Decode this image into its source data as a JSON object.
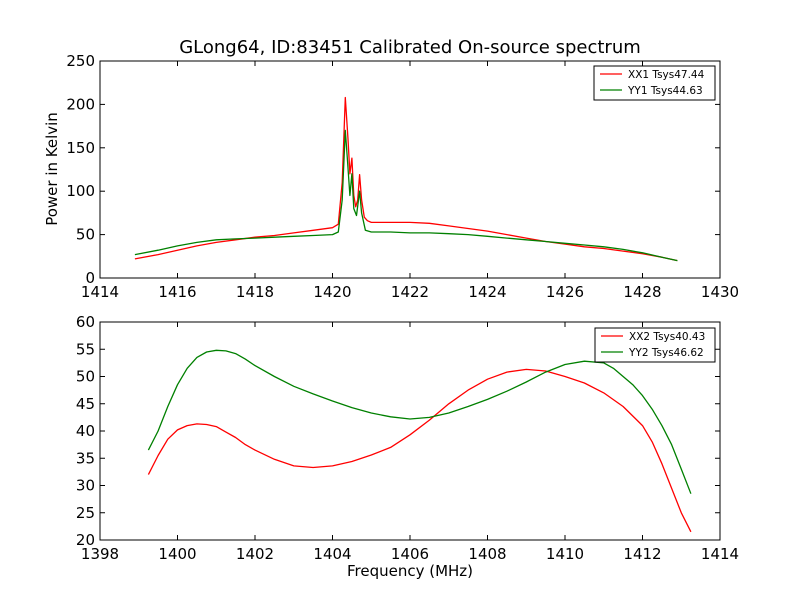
{
  "chart_data": [
    {
      "type": "line",
      "title": "GLong64, ID:83451 Calibrated On-source spectrum",
      "xlabel": "",
      "ylabel": "Power in Kelvin",
      "xlim": [
        1414,
        1430
      ],
      "ylim": [
        0,
        250
      ],
      "xticks": [
        1414,
        1416,
        1418,
        1420,
        1422,
        1424,
        1426,
        1428,
        1430
      ],
      "yticks": [
        0,
        50,
        100,
        150,
        200,
        250
      ],
      "legend_position": "top-right",
      "series": [
        {
          "name": "XX1 Tsys47.44",
          "color": "#ff0000",
          "points": [
            [
              1414.9,
              22
            ],
            [
              1415.5,
              27
            ],
            [
              1416,
              32
            ],
            [
              1416.5,
              37
            ],
            [
              1417,
              41
            ],
            [
              1417.5,
              44
            ],
            [
              1418,
              47
            ],
            [
              1418.5,
              49
            ],
            [
              1419,
              52
            ],
            [
              1419.5,
              55
            ],
            [
              1420,
              58
            ],
            [
              1420.15,
              62
            ],
            [
              1420.25,
              110
            ],
            [
              1420.33,
              208
            ],
            [
              1420.4,
              160
            ],
            [
              1420.45,
              120
            ],
            [
              1420.5,
              138
            ],
            [
              1420.55,
              95
            ],
            [
              1420.6,
              82
            ],
            [
              1420.65,
              90
            ],
            [
              1420.7,
              119
            ],
            [
              1420.75,
              90
            ],
            [
              1420.82,
              70
            ],
            [
              1420.9,
              66
            ],
            [
              1421,
              64
            ],
            [
              1421.5,
              64
            ],
            [
              1422,
              64
            ],
            [
              1422.5,
              63
            ],
            [
              1423,
              60
            ],
            [
              1423.5,
              57
            ],
            [
              1424,
              54
            ],
            [
              1424.5,
              50
            ],
            [
              1425,
              46
            ],
            [
              1425.5,
              42
            ],
            [
              1426,
              39
            ],
            [
              1426.5,
              36
            ],
            [
              1427,
              34
            ],
            [
              1427.5,
              31
            ],
            [
              1428,
              28
            ],
            [
              1428.5,
              24
            ],
            [
              1428.9,
              20
            ]
          ]
        },
        {
          "name": "YY1 Tsys44.63",
          "color": "#008000",
          "points": [
            [
              1414.9,
              27
            ],
            [
              1415.5,
              32
            ],
            [
              1416,
              37
            ],
            [
              1416.5,
              41
            ],
            [
              1417,
              44
            ],
            [
              1417.5,
              45
            ],
            [
              1418,
              46
            ],
            [
              1418.5,
              47
            ],
            [
              1419,
              48
            ],
            [
              1419.5,
              49
            ],
            [
              1420,
              50
            ],
            [
              1420.15,
              53
            ],
            [
              1420.25,
              90
            ],
            [
              1420.33,
              170
            ],
            [
              1420.38,
              140
            ],
            [
              1420.45,
              95
            ],
            [
              1420.5,
              120
            ],
            [
              1420.55,
              80
            ],
            [
              1420.62,
              72
            ],
            [
              1420.7,
              100
            ],
            [
              1420.75,
              75
            ],
            [
              1420.85,
              55
            ],
            [
              1421,
              53
            ],
            [
              1421.5,
              53
            ],
            [
              1422,
              52
            ],
            [
              1422.5,
              52
            ],
            [
              1423,
              51
            ],
            [
              1423.5,
              50
            ],
            [
              1424,
              48
            ],
            [
              1424.5,
              46
            ],
            [
              1425,
              44
            ],
            [
              1425.5,
              42
            ],
            [
              1426,
              40
            ],
            [
              1426.5,
              38
            ],
            [
              1427,
              36
            ],
            [
              1427.5,
              33
            ],
            [
              1428,
              29
            ],
            [
              1428.5,
              24
            ],
            [
              1428.9,
              20
            ]
          ]
        }
      ]
    },
    {
      "type": "line",
      "title": "",
      "xlabel": "Frequency (MHz)",
      "ylabel": "",
      "xlim": [
        1398,
        1414
      ],
      "ylim": [
        20,
        60
      ],
      "xticks": [
        1398,
        1400,
        1402,
        1404,
        1406,
        1408,
        1410,
        1412,
        1414
      ],
      "yticks": [
        20,
        25,
        30,
        35,
        40,
        45,
        50,
        55,
        60
      ],
      "legend_position": "top-right",
      "series": [
        {
          "name": "XX2 Tsys40.43",
          "color": "#ff0000",
          "points": [
            [
              1399.25,
              32
            ],
            [
              1399.5,
              35.5
            ],
            [
              1399.75,
              38.5
            ],
            [
              1400,
              40.2
            ],
            [
              1400.25,
              41
            ],
            [
              1400.5,
              41.3
            ],
            [
              1400.75,
              41.2
            ],
            [
              1401,
              40.8
            ],
            [
              1401.25,
              39.8
            ],
            [
              1401.5,
              38.8
            ],
            [
              1401.75,
              37.5
            ],
            [
              1402,
              36.5
            ],
            [
              1402.5,
              34.8
            ],
            [
              1403,
              33.6
            ],
            [
              1403.5,
              33.3
            ],
            [
              1404,
              33.6
            ],
            [
              1404.5,
              34.4
            ],
            [
              1405,
              35.6
            ],
            [
              1405.5,
              37
            ],
            [
              1406,
              39.3
            ],
            [
              1406.5,
              42
            ],
            [
              1407,
              45
            ],
            [
              1407.5,
              47.5
            ],
            [
              1408,
              49.5
            ],
            [
              1408.5,
              50.8
            ],
            [
              1409,
              51.3
            ],
            [
              1409.5,
              51
            ],
            [
              1410,
              50
            ],
            [
              1410.5,
              48.8
            ],
            [
              1411,
              47
            ],
            [
              1411.5,
              44.5
            ],
            [
              1412,
              41
            ],
            [
              1412.25,
              38
            ],
            [
              1412.5,
              34
            ],
            [
              1412.75,
              29.5
            ],
            [
              1413,
              25
            ],
            [
              1413.25,
              21.5
            ]
          ]
        },
        {
          "name": "YY2 Tsys46.62",
          "color": "#008000",
          "points": [
            [
              1399.25,
              36.5
            ],
            [
              1399.5,
              40
            ],
            [
              1399.75,
              44.5
            ],
            [
              1400,
              48.5
            ],
            [
              1400.25,
              51.5
            ],
            [
              1400.5,
              53.5
            ],
            [
              1400.75,
              54.5
            ],
            [
              1401,
              54.8
            ],
            [
              1401.25,
              54.7
            ],
            [
              1401.5,
              54.2
            ],
            [
              1401.75,
              53.2
            ],
            [
              1402,
              52
            ],
            [
              1402.5,
              50
            ],
            [
              1403,
              48.2
            ],
            [
              1403.5,
              46.8
            ],
            [
              1404,
              45.5
            ],
            [
              1404.5,
              44.3
            ],
            [
              1405,
              43.3
            ],
            [
              1405.5,
              42.6
            ],
            [
              1406,
              42.2
            ],
            [
              1406.5,
              42.5
            ],
            [
              1407,
              43.3
            ],
            [
              1407.5,
              44.5
            ],
            [
              1408,
              45.8
            ],
            [
              1408.5,
              47.3
            ],
            [
              1409,
              49
            ],
            [
              1409.5,
              50.8
            ],
            [
              1410,
              52.2
            ],
            [
              1410.5,
              52.8
            ],
            [
              1411,
              52.5
            ],
            [
              1411.25,
              51.5
            ],
            [
              1411.5,
              50
            ],
            [
              1411.75,
              48.5
            ],
            [
              1412,
              46.5
            ],
            [
              1412.25,
              44
            ],
            [
              1412.5,
              41
            ],
            [
              1412.75,
              37.5
            ],
            [
              1413,
              33
            ],
            [
              1413.25,
              28.5
            ]
          ]
        }
      ]
    }
  ]
}
